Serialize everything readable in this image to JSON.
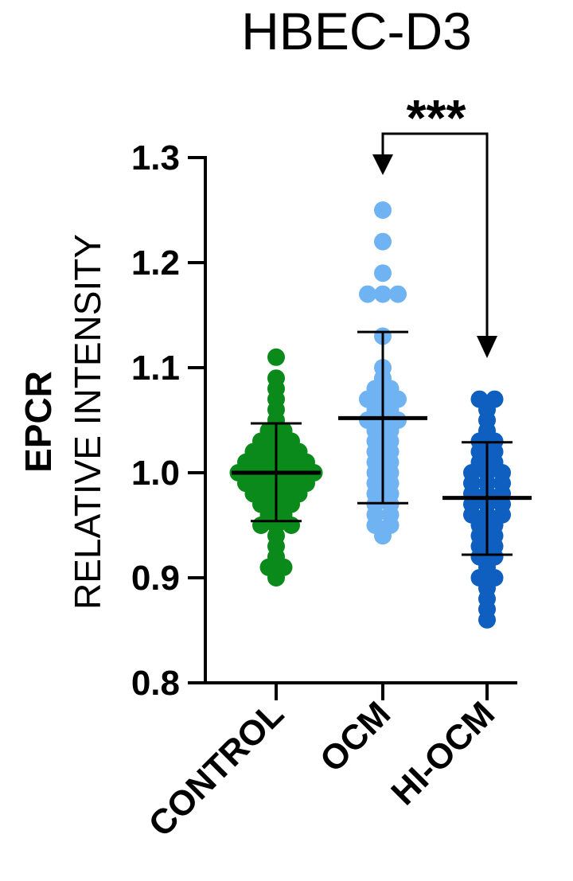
{
  "chart_data": {
    "type": "scatter",
    "title": "HBEC-D3",
    "ylabel_line1": "EPCR",
    "ylabel_line2": "RELATIVE INTENSITY",
    "ylim": [
      0.8,
      1.3
    ],
    "yticks": [
      "0.8",
      "0.9",
      "1.0",
      "1.1",
      "1.2",
      "1.3"
    ],
    "categories": [
      "CONTROL",
      "OCM",
      "HI-OCM"
    ],
    "significance": "***",
    "significance_between": [
      "OCM",
      "HI-OCM"
    ],
    "series": [
      {
        "category": "CONTROL",
        "color": "#0a8a1a",
        "mean": 1.0,
        "sd_upper": 1.047,
        "sd_lower": 0.954,
        "points": [
          1.11,
          1.09,
          1.08,
          1.07,
          1.06,
          1.05,
          1.04,
          1.04,
          1.03,
          1.03,
          1.03,
          1.02,
          1.02,
          1.02,
          1.02,
          1.01,
          1.01,
          1.01,
          1.01,
          1.01,
          1.0,
          1.0,
          1.0,
          1.0,
          1.0,
          1.0,
          0.99,
          0.99,
          0.99,
          0.99,
          0.99,
          0.98,
          0.98,
          0.98,
          0.98,
          0.97,
          0.97,
          0.97,
          0.96,
          0.96,
          0.95,
          0.95,
          0.95,
          0.94,
          0.93,
          0.92,
          0.91,
          0.91,
          0.9
        ]
      },
      {
        "category": "OCM",
        "color": "#6fb3f2",
        "mean": 1.052,
        "sd_upper": 1.134,
        "sd_lower": 0.971,
        "points": [
          1.25,
          1.22,
          1.19,
          1.17,
          1.17,
          1.17,
          1.13,
          1.1,
          1.09,
          1.08,
          1.08,
          1.07,
          1.07,
          1.07,
          1.06,
          1.06,
          1.05,
          1.05,
          1.05,
          1.04,
          1.04,
          1.03,
          1.03,
          1.02,
          1.02,
          1.01,
          1.01,
          1.0,
          1.0,
          0.99,
          0.99,
          0.98,
          0.98,
          0.97,
          0.97,
          0.96,
          0.96,
          0.95,
          0.95,
          0.94
        ]
      },
      {
        "category": "HI-OCM",
        "color": "#0e5fbf",
        "mean": 0.976,
        "sd_upper": 1.029,
        "sd_lower": 0.922,
        "points": [
          1.07,
          1.07,
          1.06,
          1.05,
          1.04,
          1.03,
          1.03,
          1.02,
          1.02,
          1.01,
          1.01,
          1.0,
          1.0,
          1.0,
          0.99,
          0.99,
          0.99,
          0.98,
          0.98,
          0.98,
          0.97,
          0.97,
          0.97,
          0.96,
          0.96,
          0.96,
          0.95,
          0.95,
          0.94,
          0.94,
          0.93,
          0.93,
          0.92,
          0.92,
          0.91,
          0.9,
          0.9,
          0.89,
          0.88,
          0.87,
          0.86
        ]
      }
    ]
  }
}
